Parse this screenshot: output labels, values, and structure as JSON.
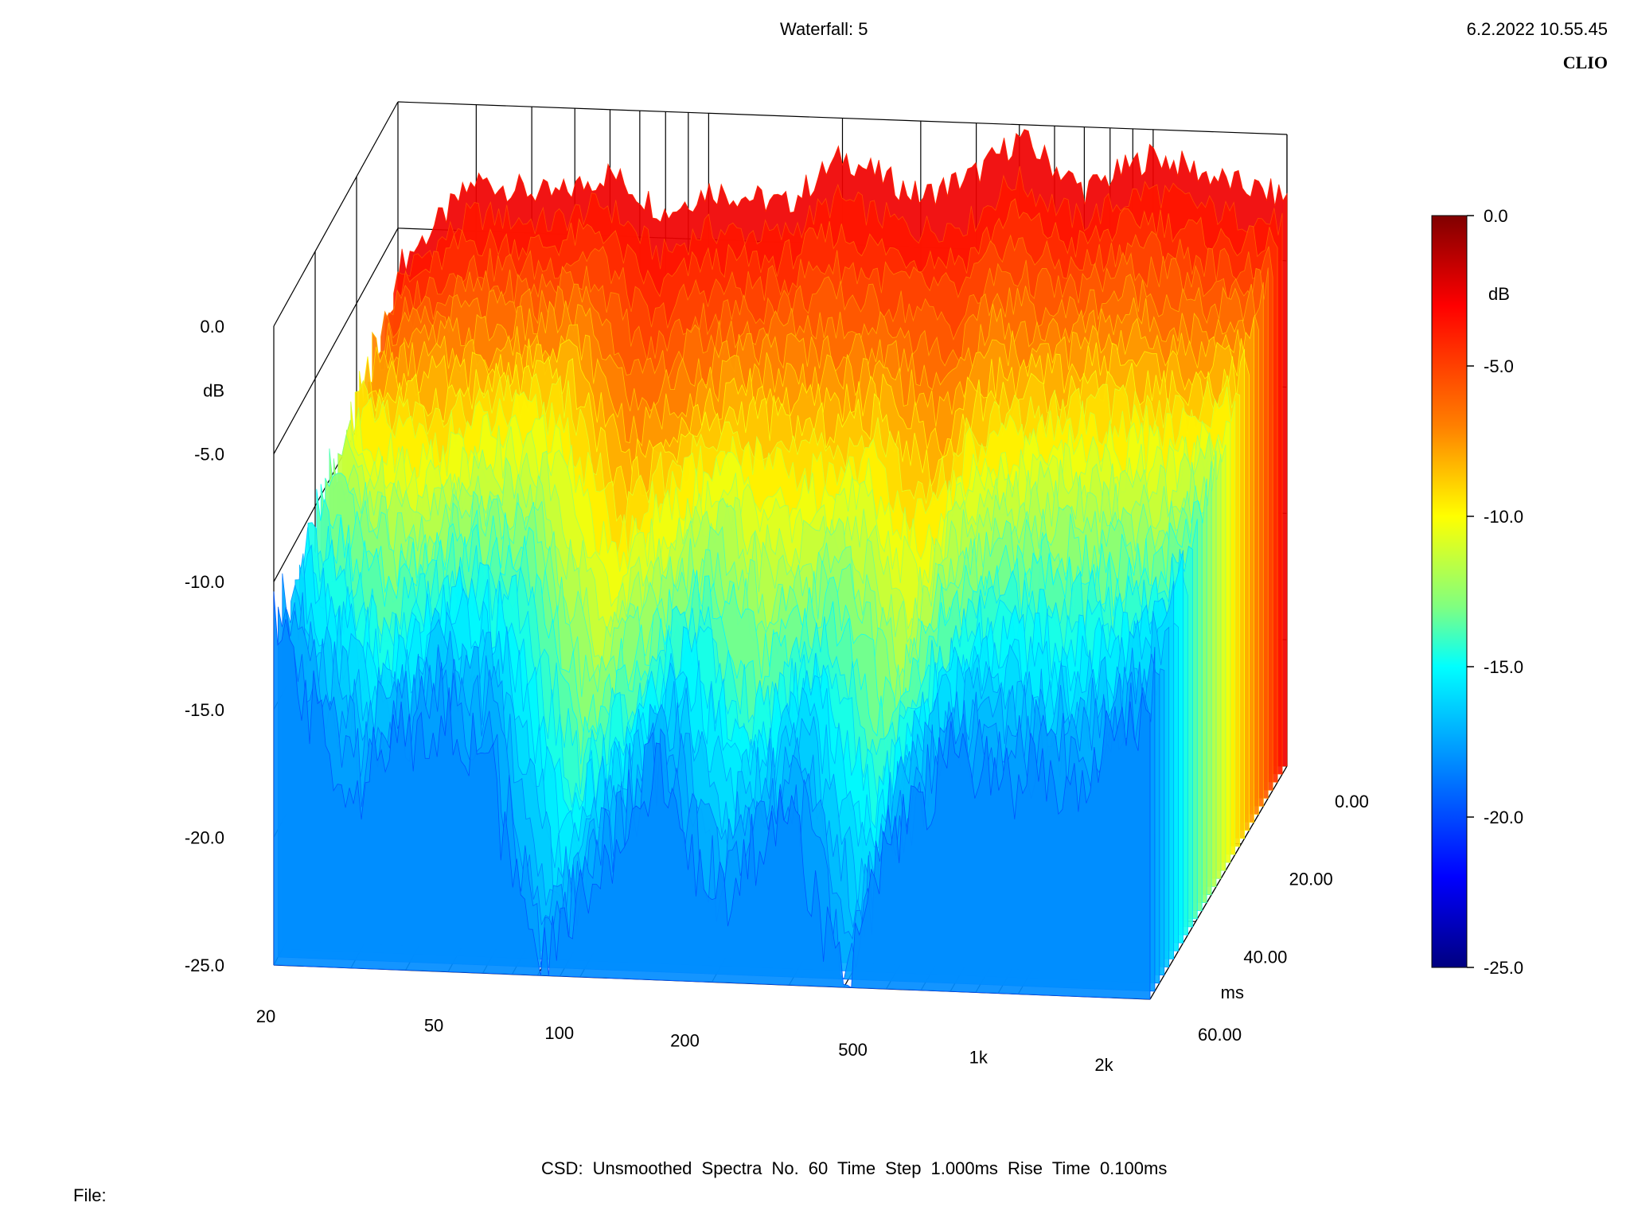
{
  "header": {
    "title": "Waterfall: 5",
    "timestamp": "6.2.2022 10.55.45",
    "brand": "CLIO"
  },
  "footer": {
    "info": "CSD:   Unsmoothed   Spectra No. 60   Time Step 1.000ms   Rise Time 0.100ms",
    "file_label": "File:"
  },
  "chart_data": {
    "type": "waterfall",
    "x_ticks": [
      "20",
      "50",
      "100",
      "200",
      "500",
      "1k",
      "2k"
    ],
    "x_range_hz": [
      20,
      2000
    ],
    "x_scale": "log",
    "y_ticks": [
      "0.0",
      "-5.0",
      "-10.0",
      "-15.0",
      "-20.0",
      "-25.0"
    ],
    "y_unit": "dB",
    "y_range": [
      -25,
      0
    ],
    "z_ticks": [
      "0.00",
      "20.00",
      "40.00",
      "60.00"
    ],
    "z_unit": "ms",
    "z_range": [
      0,
      60
    ],
    "colorbar": {
      "ticks": [
        "0.0",
        "-5.0",
        "-10.0",
        "-15.0",
        "-20.0",
        "-25.0"
      ],
      "unit": "dB",
      "range": [
        -25,
        0
      ],
      "colors": [
        "#800000",
        "#ff0000",
        "#ff8000",
        "#ffff00",
        "#80ff80",
        "#00ffff",
        "#0080ff",
        "#0000ff",
        "#000080"
      ]
    },
    "spectra_count": 60,
    "time_step_ms": 1.0,
    "rise_time_ms": 0.1,
    "smoothing": "Unsmoothed",
    "first_spectrum_db": [
      {
        "f": 20,
        "db": -6.5
      },
      {
        "f": 30,
        "db": -3.0
      },
      {
        "f": 45,
        "db": -3.5
      },
      {
        "f": 60,
        "db": -2.5
      },
      {
        "f": 80,
        "db": -4.0
      },
      {
        "f": 100,
        "db": -3.0
      },
      {
        "f": 150,
        "db": -3.5
      },
      {
        "f": 200,
        "db": -1.5
      },
      {
        "f": 300,
        "db": -3.0
      },
      {
        "f": 400,
        "db": -2.0
      },
      {
        "f": 500,
        "db": -0.5
      },
      {
        "f": 700,
        "db": -2.5
      },
      {
        "f": 1000,
        "db": -1.0
      },
      {
        "f": 1500,
        "db": -2.0
      },
      {
        "f": 2000,
        "db": -2.5
      }
    ],
    "last_spectrum_db": [
      {
        "f": 20,
        "db": -12.0
      },
      {
        "f": 30,
        "db": -18.0
      },
      {
        "f": 45,
        "db": -15.0
      },
      {
        "f": 60,
        "db": -16.0
      },
      {
        "f": 80,
        "db": -25.0
      },
      {
        "f": 100,
        "db": -22.0
      },
      {
        "f": 150,
        "db": -17.0
      },
      {
        "f": 200,
        "db": -22.0
      },
      {
        "f": 300,
        "db": -18.0
      },
      {
        "f": 400,
        "db": -25.0
      },
      {
        "f": 500,
        "db": -20.0
      },
      {
        "f": 700,
        "db": -16.0
      },
      {
        "f": 1000,
        "db": -16.5
      },
      {
        "f": 1500,
        "db": -16.0
      },
      {
        "f": 2000,
        "db": -13.0
      }
    ]
  }
}
